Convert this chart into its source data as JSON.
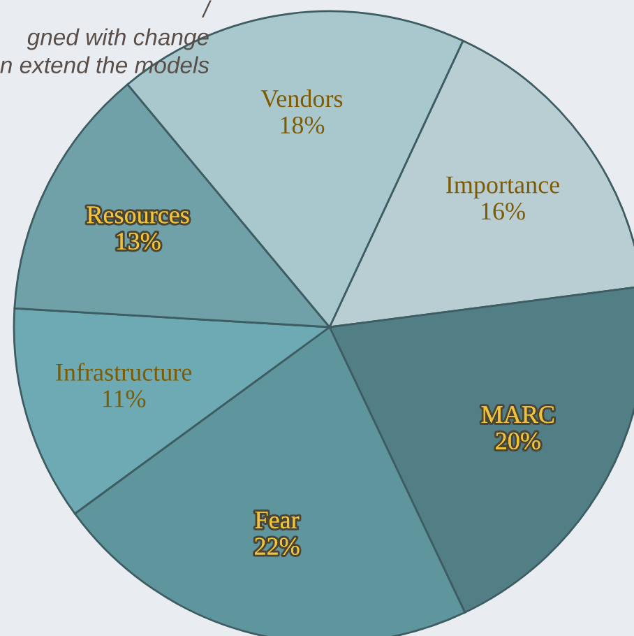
{
  "chart_data": {
    "type": "pie",
    "categories": [
      "Importance",
      "MARC",
      "Fear",
      "Infrastructure",
      "Resources",
      "Vendors"
    ],
    "values": [
      16,
      20,
      22,
      11,
      13,
      18
    ],
    "colors": [
      "#b9ced3",
      "#527f86",
      "#5f969e",
      "#6eaab4",
      "#70a1a9",
      "#a9c8ce"
    ],
    "value_labels": [
      "16%",
      "20%",
      "22%",
      "11%",
      "13%",
      "18%"
    ],
    "annotations": [
      "/",
      "gned with change",
      "n extend the models"
    ]
  }
}
